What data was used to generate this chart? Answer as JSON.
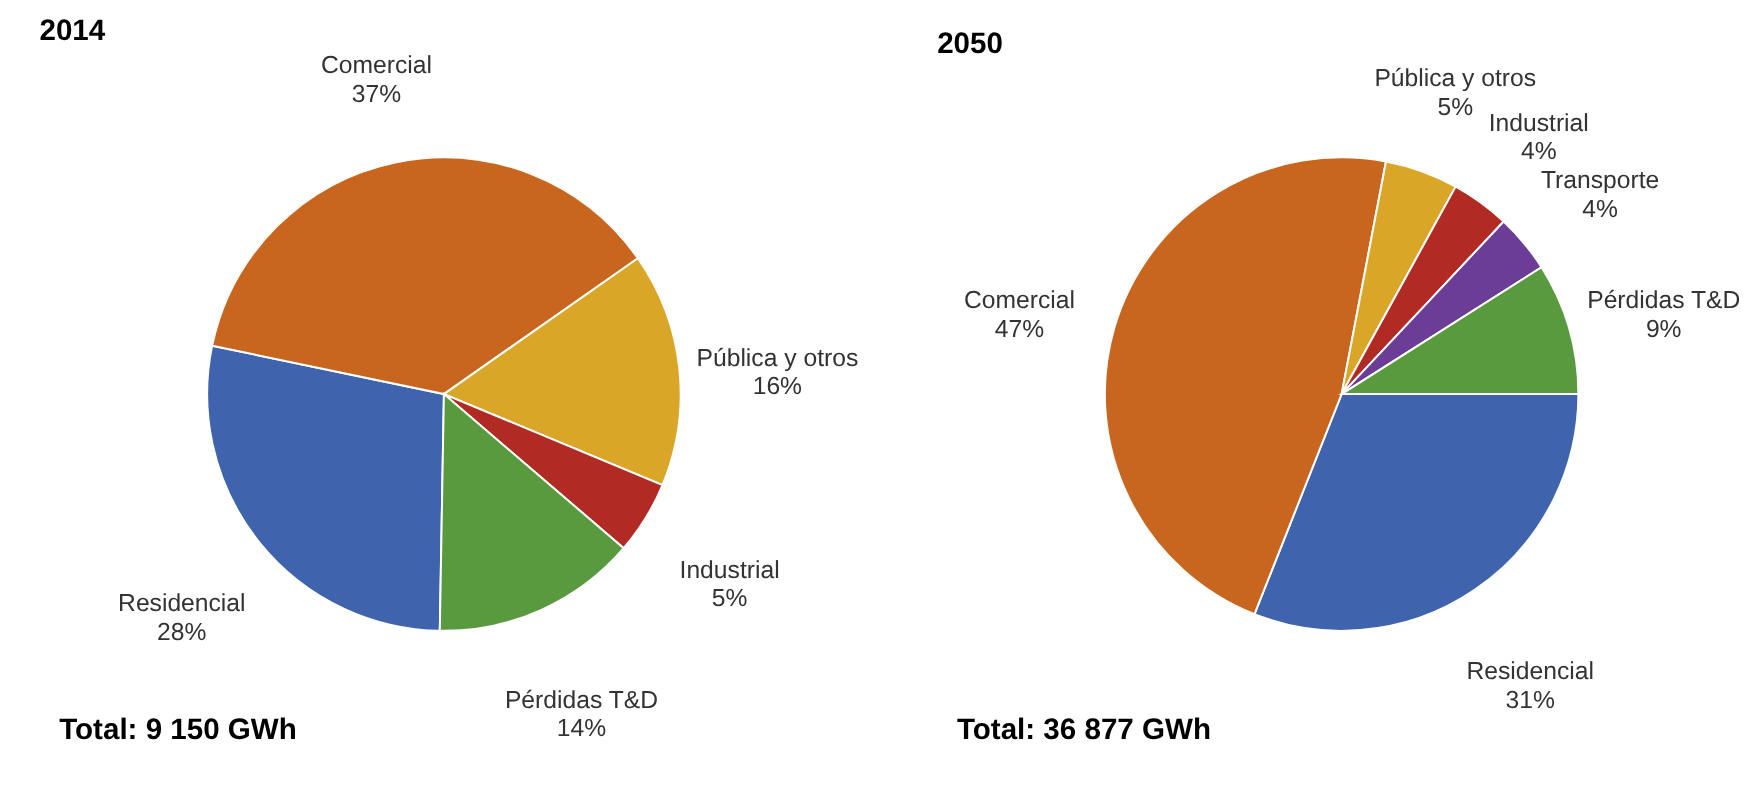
{
  "chart_data": [
    {
      "type": "pie",
      "title": "2014",
      "categories": [
        "Residencial",
        "Comercial",
        "Pública y otros",
        "Industrial",
        "Pérdidas T&D"
      ],
      "values": [
        28,
        37,
        16,
        5,
        14
      ],
      "colors": [
        "#3f64ad",
        "#c8651f",
        "#d9a628",
        "#b22a24",
        "#5a9a3f"
      ],
      "value_labels": [
        "28%",
        "37%",
        "16%",
        "5%",
        "14%"
      ],
      "annotations": [
        "Total: 9 150 GWh"
      ]
    },
    {
      "type": "pie",
      "title": "2050",
      "categories": [
        "Residencial",
        "Comercial",
        "Pública y otros",
        "Industrial",
        "Transporte",
        "Pérdidas T&D"
      ],
      "values": [
        31,
        47,
        5,
        4,
        4,
        9
      ],
      "colors": [
        "#3f64ad",
        "#c8651f",
        "#d9a628",
        "#b22a24",
        "#6b3d96",
        "#5a9a3f"
      ],
      "value_labels": [
        "31%",
        "47%",
        "5%",
        "4%",
        "4%",
        "9%"
      ],
      "annotations": [
        "Total: 36 877 GWh"
      ]
    }
  ]
}
